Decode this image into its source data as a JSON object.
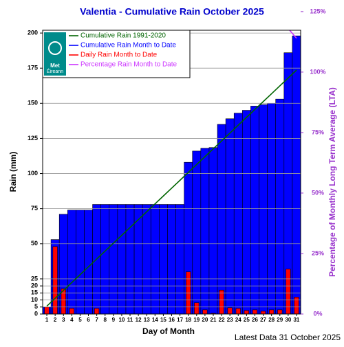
{
  "chart_data": {
    "type": "bar",
    "title": "Valentia - Cumulative Rain October   2025",
    "x_label": "Day of Month",
    "y_label": "Rain (mm)",
    "y2_label": "Percentage  of Monthly Long Term Average (LTA)",
    "footer": "Latest Data 31 October 2025",
    "logo": [
      "Met",
      "Éireann"
    ],
    "categories": [
      "1",
      "2",
      "3",
      "4",
      "5",
      "6",
      "7",
      "8",
      "9",
      "10",
      "11",
      "12",
      "13",
      "14",
      "15",
      "16",
      "17",
      "18",
      "19",
      "20",
      "21",
      "22",
      "23",
      "24",
      "25",
      "26",
      "27",
      "28",
      "29",
      "30",
      "31"
    ],
    "series": [
      {
        "name": "Cumulative Rain 1991-2020",
        "color": "#006400",
        "kind": "line",
        "values": [
          5.6,
          11.2,
          16.8,
          22.4,
          28,
          33.6,
          39.2,
          44.8,
          50.4,
          56,
          61.6,
          67.2,
          72.8,
          78.4,
          84,
          89.6,
          95.2,
          100.8,
          106.4,
          112,
          117.6,
          123.2,
          128.8,
          134.4,
          140,
          145.6,
          151.2,
          156.8,
          162.4,
          168,
          173.6
        ]
      },
      {
        "name": "Cumulative Rain Month to Date",
        "color": "#0000ff",
        "kind": "bar",
        "values": [
          5,
          53,
          71,
          74,
          74,
          74,
          78,
          78,
          78,
          78,
          78,
          78,
          78,
          78,
          78,
          78,
          78,
          108,
          116,
          118,
          118.5,
          135,
          139,
          143,
          145,
          148,
          149,
          150,
          153,
          186,
          198
        ]
      },
      {
        "name": "Daily Rain Month to Date",
        "color": "#ff0000",
        "kind": "bar-narrow",
        "values": [
          5,
          48,
          18,
          4,
          0,
          0,
          4,
          0,
          0,
          0,
          0,
          0,
          0,
          0,
          0,
          0,
          0,
          30,
          8,
          3,
          0.5,
          17,
          4.5,
          4,
          2.5,
          3,
          2,
          3,
          3,
          32,
          12
        ]
      },
      {
        "name": "Percentage Rain Month to Date",
        "color": "#cc33ff",
        "kind": "line",
        "axis": "y2",
        "values": [
          null,
          null,
          null,
          null,
          null,
          null,
          null,
          null,
          null,
          null,
          null,
          null,
          null,
          null,
          null,
          null,
          null,
          null,
          null,
          null,
          null,
          null,
          null,
          null,
          null,
          null,
          null,
          null,
          null,
          118,
          114
        ]
      }
    ],
    "ylim": [
      0,
      202
    ],
    "yticks": [
      0,
      5,
      10,
      15,
      20,
      25,
      50,
      75,
      100,
      125,
      150,
      175,
      200
    ],
    "y2lim": [
      0,
      117.3
    ],
    "y2ticks": [
      {
        "value": 0,
        "label": "0%"
      },
      {
        "value": 25,
        "label": "25%"
      },
      {
        "value": 50,
        "label": "50%"
      },
      {
        "value": 75,
        "label": "75%"
      },
      {
        "value": 100,
        "label": "100%"
      },
      {
        "value": 125,
        "label": "125%"
      }
    ],
    "grid": true
  }
}
